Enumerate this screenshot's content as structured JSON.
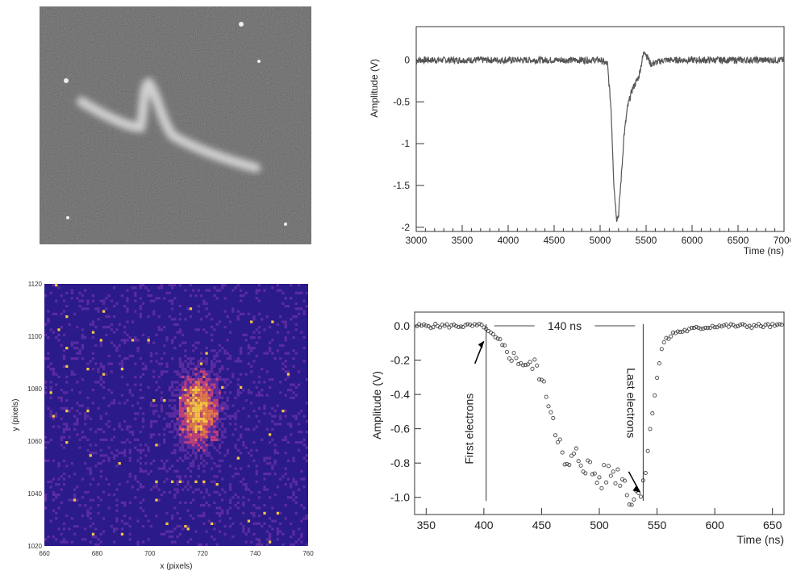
{
  "chart_data": [
    {
      "panel": "top-left",
      "type": "image",
      "description_kind": "grayscale camera image of a track",
      "colors": {
        "background": "#3a3a3a",
        "track": "#e6e6e6"
      }
    },
    {
      "panel": "top-right",
      "type": "line",
      "xlabel": "Time (ns)",
      "ylabel": "Amplitude (V)",
      "xlim": [
        3000,
        7000
      ],
      "ylim": [
        -2.05,
        0.4
      ],
      "xticks": [
        "3000",
        "3500",
        "4000",
        "4500",
        "5000",
        "5500",
        "6000",
        "6500",
        "7000"
      ],
      "yticks": [
        "0",
        "-0.5",
        "-1",
        "-1.5",
        "-2"
      ],
      "series": [
        {
          "x": [
            3000,
            4000,
            5000,
            5080,
            5120,
            5150,
            5180,
            5200,
            5230,
            5260,
            5300,
            5350,
            5420,
            5480,
            5550,
            5700,
            6000,
            7000
          ],
          "values": [
            0,
            0,
            0,
            -0.05,
            -0.6,
            -1.5,
            -1.9,
            -1.85,
            -1.4,
            -0.9,
            -0.55,
            -0.35,
            -0.2,
            0.12,
            -0.05,
            0,
            0,
            0
          ],
          "noise": 0.04
        }
      ],
      "colors": {
        "line": "#555555"
      }
    },
    {
      "panel": "bottom-left",
      "type": "heatmap",
      "xlabel": "x (pixels)",
      "ylabel": "y (pixels)",
      "xlim": [
        660,
        760
      ],
      "ylim": [
        1020,
        1120
      ],
      "xticks": [
        "660",
        "680",
        "700",
        "720",
        "740",
        "760"
      ],
      "yticks": [
        "1120",
        "1100",
        "1080",
        "1060",
        "1040",
        "1020"
      ],
      "blob_center": [
        718,
        1072
      ],
      "colors": {
        "background": "#2b1a8a",
        "hot": "#f5c542",
        "mid": "#c0407a"
      }
    },
    {
      "panel": "bottom-right",
      "type": "scatter",
      "xlabel": "Time (ns)",
      "ylabel": "Amplitude (V)",
      "xlim": [
        340,
        660
      ],
      "ylim": [
        -1.1,
        0.08
      ],
      "xticks": [
        "350",
        "400",
        "450",
        "500",
        "550",
        "600",
        "650"
      ],
      "yticks": [
        "0.0",
        "-0.2",
        "-0.4",
        "-0.6",
        "-0.8",
        "-1.0"
      ],
      "annotations": {
        "span_label": "140 ns",
        "first_label": "First electrons",
        "last_label": "Last electrons"
      },
      "span": [
        402,
        538
      ],
      "series": [
        {
          "x": [
            340,
            360,
            380,
            400,
            405,
            415,
            425,
            440,
            445,
            455,
            465,
            470,
            475,
            480,
            490,
            500,
            510,
            520,
            528,
            535,
            540,
            545,
            550,
            555,
            565,
            580,
            600,
            620,
            640,
            660
          ],
          "values": [
            0.0,
            0.0,
            0.0,
            0.0,
            -0.05,
            -0.12,
            -0.18,
            -0.24,
            -0.22,
            -0.42,
            -0.65,
            -0.85,
            -0.8,
            -0.76,
            -0.82,
            -0.9,
            -0.85,
            -0.88,
            -1.02,
            -0.95,
            -0.85,
            -0.55,
            -0.3,
            -0.1,
            -0.04,
            -0.02,
            0.0,
            0.0,
            0.0,
            0.0
          ]
        }
      ],
      "colors": {
        "marker": "#444444"
      }
    }
  ]
}
